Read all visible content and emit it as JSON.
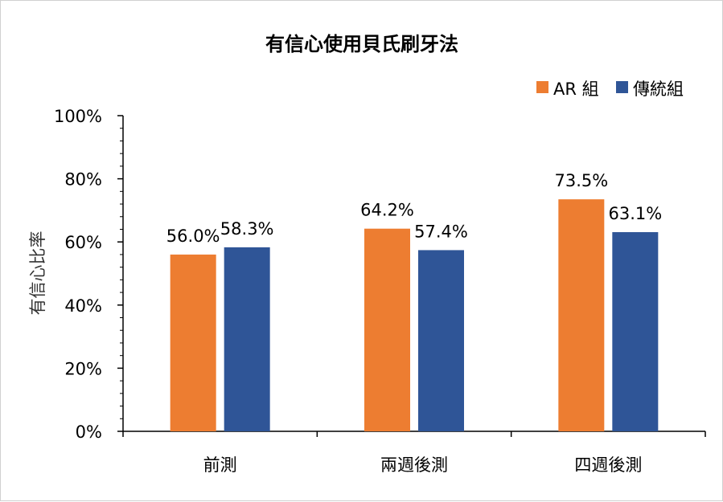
{
  "chart_data": {
    "type": "bar",
    "title": "有信心使用貝氏刷牙法",
    "ylabel": "有信心比率",
    "xlabel": "",
    "categories": [
      "前測",
      "兩週後測",
      "四週後測"
    ],
    "series": [
      {
        "name": "AR 組",
        "color": "#ED7D31",
        "values": [
          56.0,
          64.2,
          73.5
        ],
        "labels": [
          "56.0%",
          "64.2%",
          "73.5%"
        ]
      },
      {
        "name": "傳統組",
        "color": "#2F5597",
        "values": [
          58.3,
          57.4,
          63.1
        ],
        "labels": [
          "58.3%",
          "57.4%",
          "63.1%"
        ]
      }
    ],
    "ylim": [
      0,
      100
    ],
    "yticks": [
      0,
      20,
      40,
      60,
      80,
      100
    ],
    "ytick_labels": [
      "0%",
      "20%",
      "40%",
      "60%",
      "80%",
      "100%"
    ],
    "grid": false,
    "legend_position": "top-right"
  }
}
